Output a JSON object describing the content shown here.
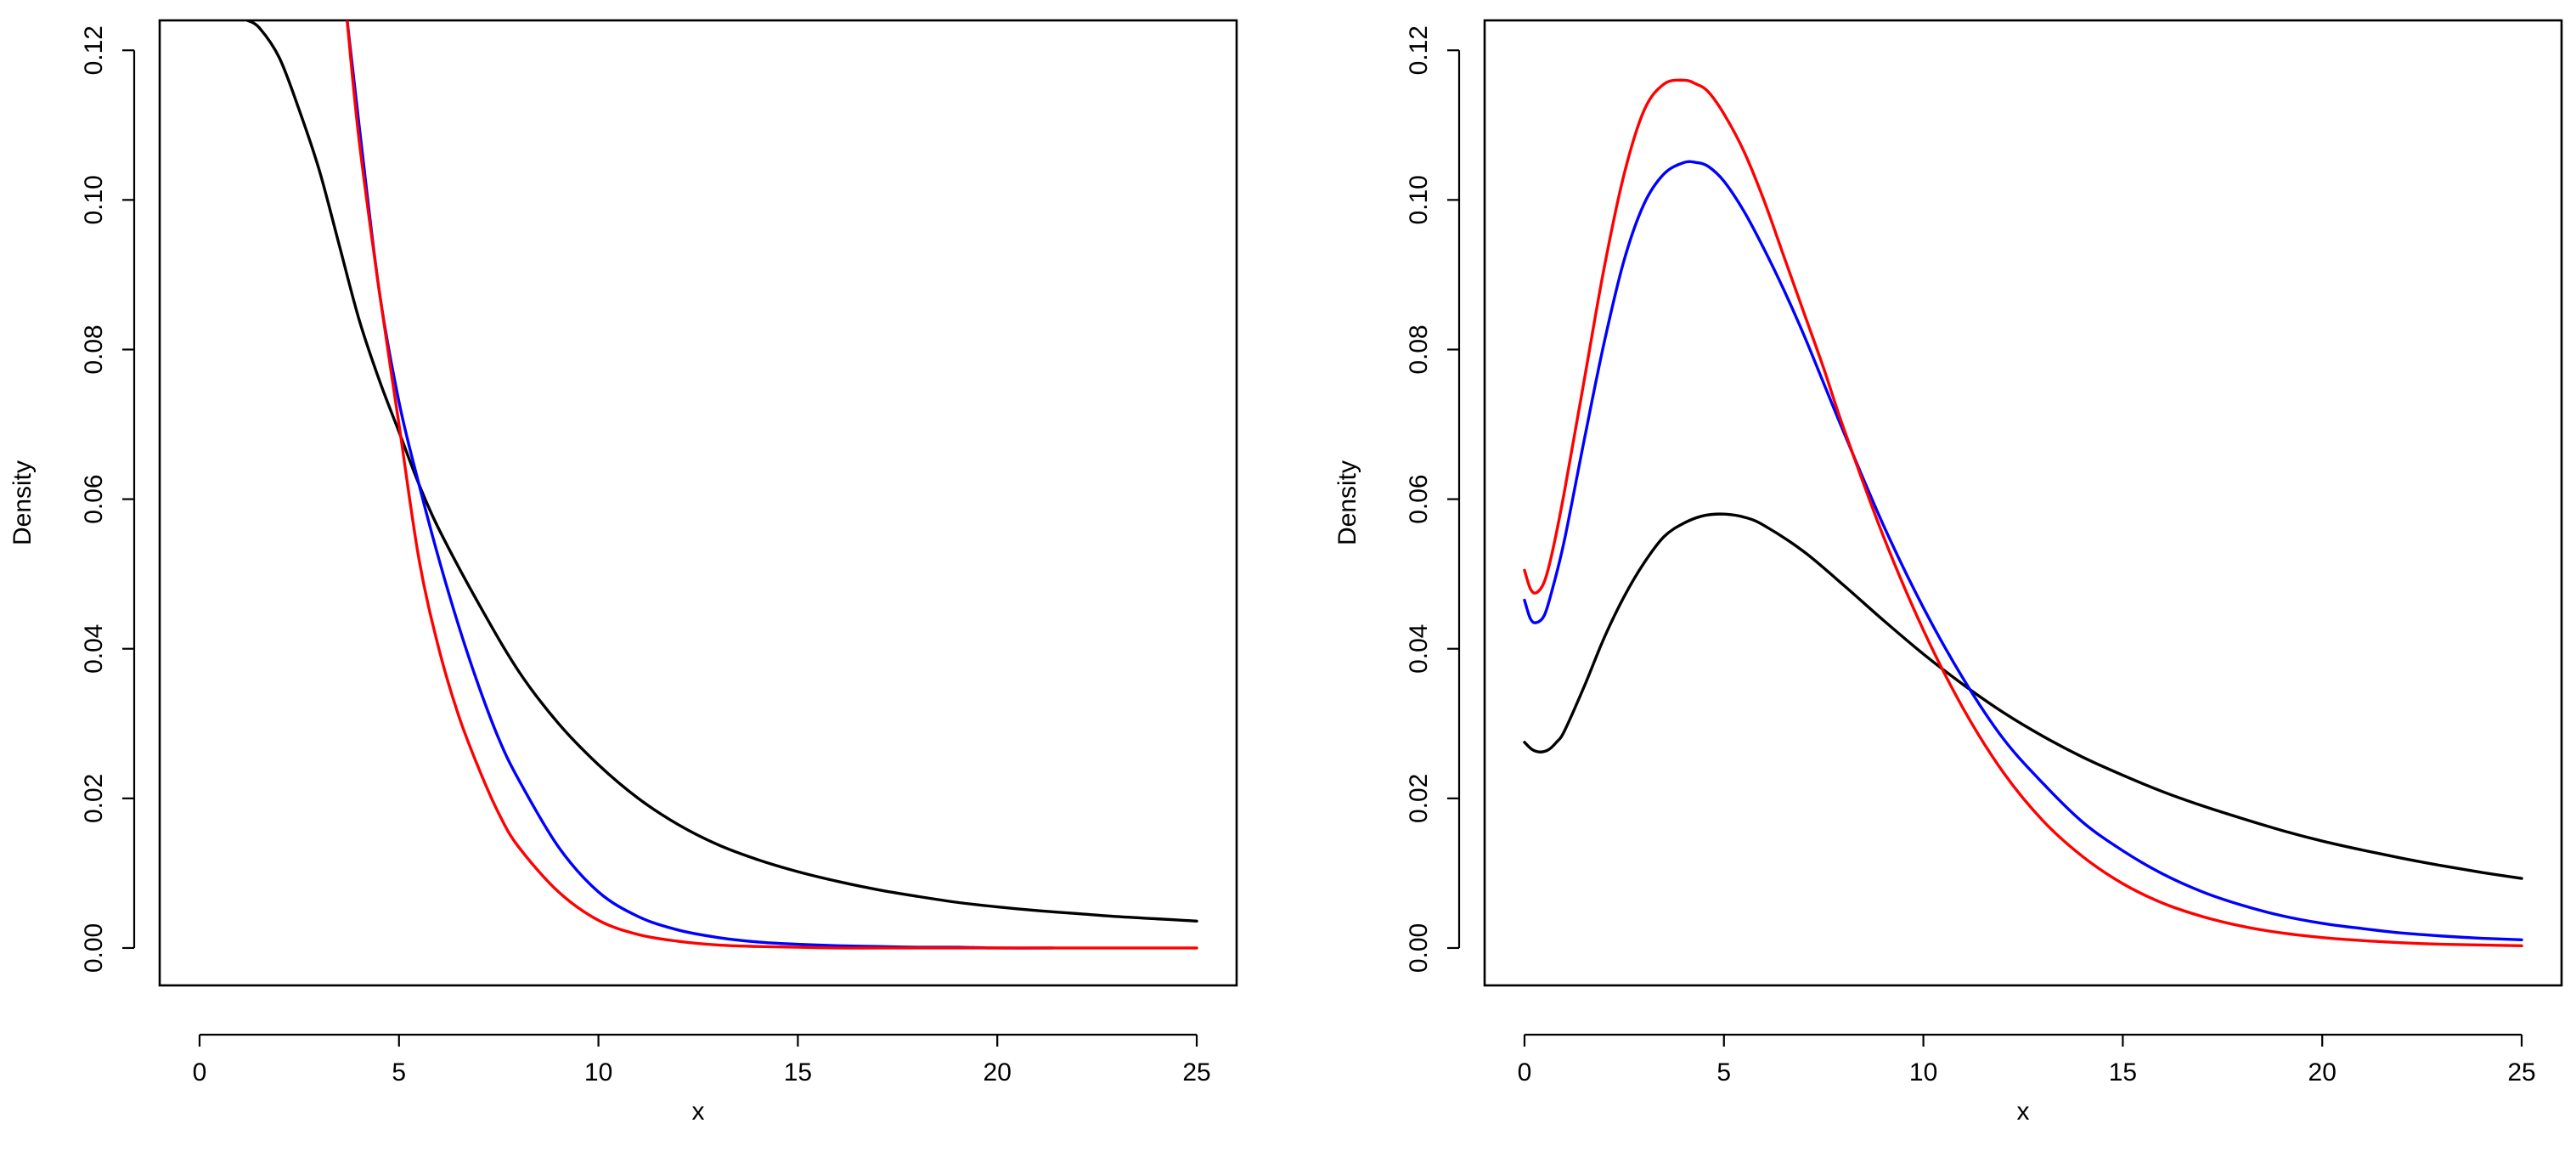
{
  "chart_data": [
    {
      "type": "line",
      "xlabel": "x",
      "ylabel": "Density",
      "xlim": [
        -1,
        26
      ],
      "ylim": [
        -0.005,
        0.124
      ],
      "x_ticks": [
        "0",
        "5",
        "10",
        "15",
        "20",
        "25"
      ],
      "y_ticks": [
        "0.00",
        "0.02",
        "0.04",
        "0.06",
        "0.08",
        "0.10",
        "0.12"
      ],
      "grid": false,
      "legend": "none",
      "series": [
        {
          "color": "#000000",
          "x": [
            1.2,
            1.5,
            2,
            2.5,
            3,
            3.5,
            4,
            4.5,
            5,
            5.5,
            6,
            7,
            8,
            9,
            10,
            11,
            12,
            13,
            14,
            15,
            16,
            17,
            18,
            19,
            20,
            21,
            22,
            23,
            24,
            25
          ],
          "values": [
            0.124,
            0.123,
            0.119,
            0.112,
            0.104,
            0.094,
            0.084,
            0.076,
            0.069,
            0.062,
            0.056,
            0.046,
            0.037,
            0.03,
            0.0245,
            0.02,
            0.0165,
            0.0138,
            0.0118,
            0.0102,
            0.0089,
            0.0078,
            0.0069,
            0.0061,
            0.0055,
            0.005,
            0.0046,
            0.0042,
            0.0039,
            0.0036
          ]
        },
        {
          "color": "#0000ff",
          "x": [
            3.7,
            4,
            4.5,
            5,
            5.5,
            6,
            6.5,
            7,
            7.5,
            8,
            9,
            10,
            11,
            12,
            13,
            14,
            15,
            16,
            17,
            18,
            19,
            20,
            21.4
          ],
          "values": [
            0.124,
            0.11,
            0.088,
            0.073,
            0.062,
            0.052,
            0.043,
            0.035,
            0.028,
            0.0225,
            0.0135,
            0.0075,
            0.0042,
            0.0024,
            0.0014,
            0.0008,
            0.0005,
            0.0003,
            0.0002,
            0.0001,
            0.0001,
            0.0,
            0.0
          ]
        },
        {
          "color": "#ff0000",
          "x": [
            3.7,
            4,
            4.5,
            5,
            5.5,
            6,
            6.5,
            7,
            7.5,
            8,
            9,
            10,
            11,
            12,
            13,
            14,
            15,
            16,
            17,
            18,
            19,
            20,
            22,
            25
          ],
          "values": [
            0.124,
            0.108,
            0.088,
            0.07,
            0.052,
            0.04,
            0.031,
            0.024,
            0.018,
            0.0135,
            0.0075,
            0.0037,
            0.0018,
            0.0009,
            0.0004,
            0.0002,
            0.0001,
            0.0,
            0.0,
            0.0,
            0.0,
            0.0,
            0.0,
            0.0
          ]
        }
      ]
    },
    {
      "type": "line",
      "xlabel": "x",
      "ylabel": "Density",
      "xlim": [
        -1,
        26
      ],
      "ylim": [
        -0.005,
        0.124
      ],
      "x_ticks": [
        "0",
        "5",
        "10",
        "15",
        "20",
        "25"
      ],
      "y_ticks": [
        "0.00",
        "0.02",
        "0.04",
        "0.06",
        "0.08",
        "0.10",
        "0.12"
      ],
      "grid": false,
      "legend": "none",
      "series": [
        {
          "color": "#000000",
          "x": [
            0,
            0.2,
            0.4,
            0.6,
            0.8,
            1,
            1.5,
            2,
            2.5,
            3,
            3.5,
            4,
            4.5,
            5,
            5.5,
            6,
            7,
            8,
            9,
            10,
            11,
            12,
            13,
            14,
            15,
            16,
            17,
            18,
            19,
            20,
            21,
            22,
            23,
            24,
            25
          ],
          "values": [
            0.0275,
            0.0265,
            0.0262,
            0.0265,
            0.0275,
            0.029,
            0.035,
            0.0415,
            0.047,
            0.0515,
            0.055,
            0.0568,
            0.0578,
            0.058,
            0.0576,
            0.0565,
            0.053,
            0.0485,
            0.0438,
            0.0393,
            0.0352,
            0.0315,
            0.0283,
            0.0255,
            0.0231,
            0.0209,
            0.019,
            0.0173,
            0.0157,
            0.0143,
            0.0131,
            0.012,
            0.011,
            0.0101,
            0.0093
          ]
        },
        {
          "color": "#0000ff",
          "x": [
            0,
            0.15,
            0.3,
            0.5,
            0.7,
            1,
            1.5,
            2,
            2.5,
            3,
            3.5,
            4,
            4.3,
            4.6,
            5,
            5.5,
            6,
            6.5,
            7,
            7.5,
            8,
            9,
            10,
            11,
            12,
            13,
            14,
            15,
            16,
            17,
            18,
            19,
            20,
            21,
            22,
            23,
            24,
            25
          ],
          "values": [
            0.0465,
            0.044,
            0.0435,
            0.0445,
            0.048,
            0.0545,
            0.068,
            0.081,
            0.092,
            0.0995,
            0.1035,
            0.105,
            0.105,
            0.1045,
            0.1025,
            0.0985,
            0.0935,
            0.088,
            0.082,
            0.0755,
            0.069,
            0.0565,
            0.0455,
            0.036,
            0.028,
            0.022,
            0.0168,
            0.013,
            0.0099,
            0.0075,
            0.0057,
            0.0043,
            0.0033,
            0.0026,
            0.002,
            0.0016,
            0.0013,
            0.0011
          ]
        },
        {
          "color": "#ff0000",
          "x": [
            0,
            0.15,
            0.3,
            0.5,
            0.7,
            1,
            1.5,
            2,
            2.5,
            3,
            3.5,
            4,
            4.3,
            4.6,
            5,
            5.5,
            6,
            6.5,
            7,
            7.5,
            8,
            9,
            10,
            11,
            12,
            13,
            14,
            15,
            16,
            17,
            18,
            19,
            20,
            21,
            22,
            23,
            24,
            25
          ],
          "values": [
            0.0505,
            0.048,
            0.0475,
            0.049,
            0.053,
            0.061,
            0.076,
            0.091,
            0.1035,
            0.112,
            0.1155,
            0.116,
            0.1155,
            0.1145,
            0.1115,
            0.1065,
            0.1,
            0.0925,
            0.085,
            0.0775,
            0.0695,
            0.055,
            0.0425,
            0.032,
            0.0235,
            0.017,
            0.0122,
            0.0086,
            0.006,
            0.0042,
            0.0029,
            0.002,
            0.0014,
            0.001,
            0.0007,
            0.0005,
            0.0004,
            0.0003
          ]
        }
      ]
    }
  ]
}
